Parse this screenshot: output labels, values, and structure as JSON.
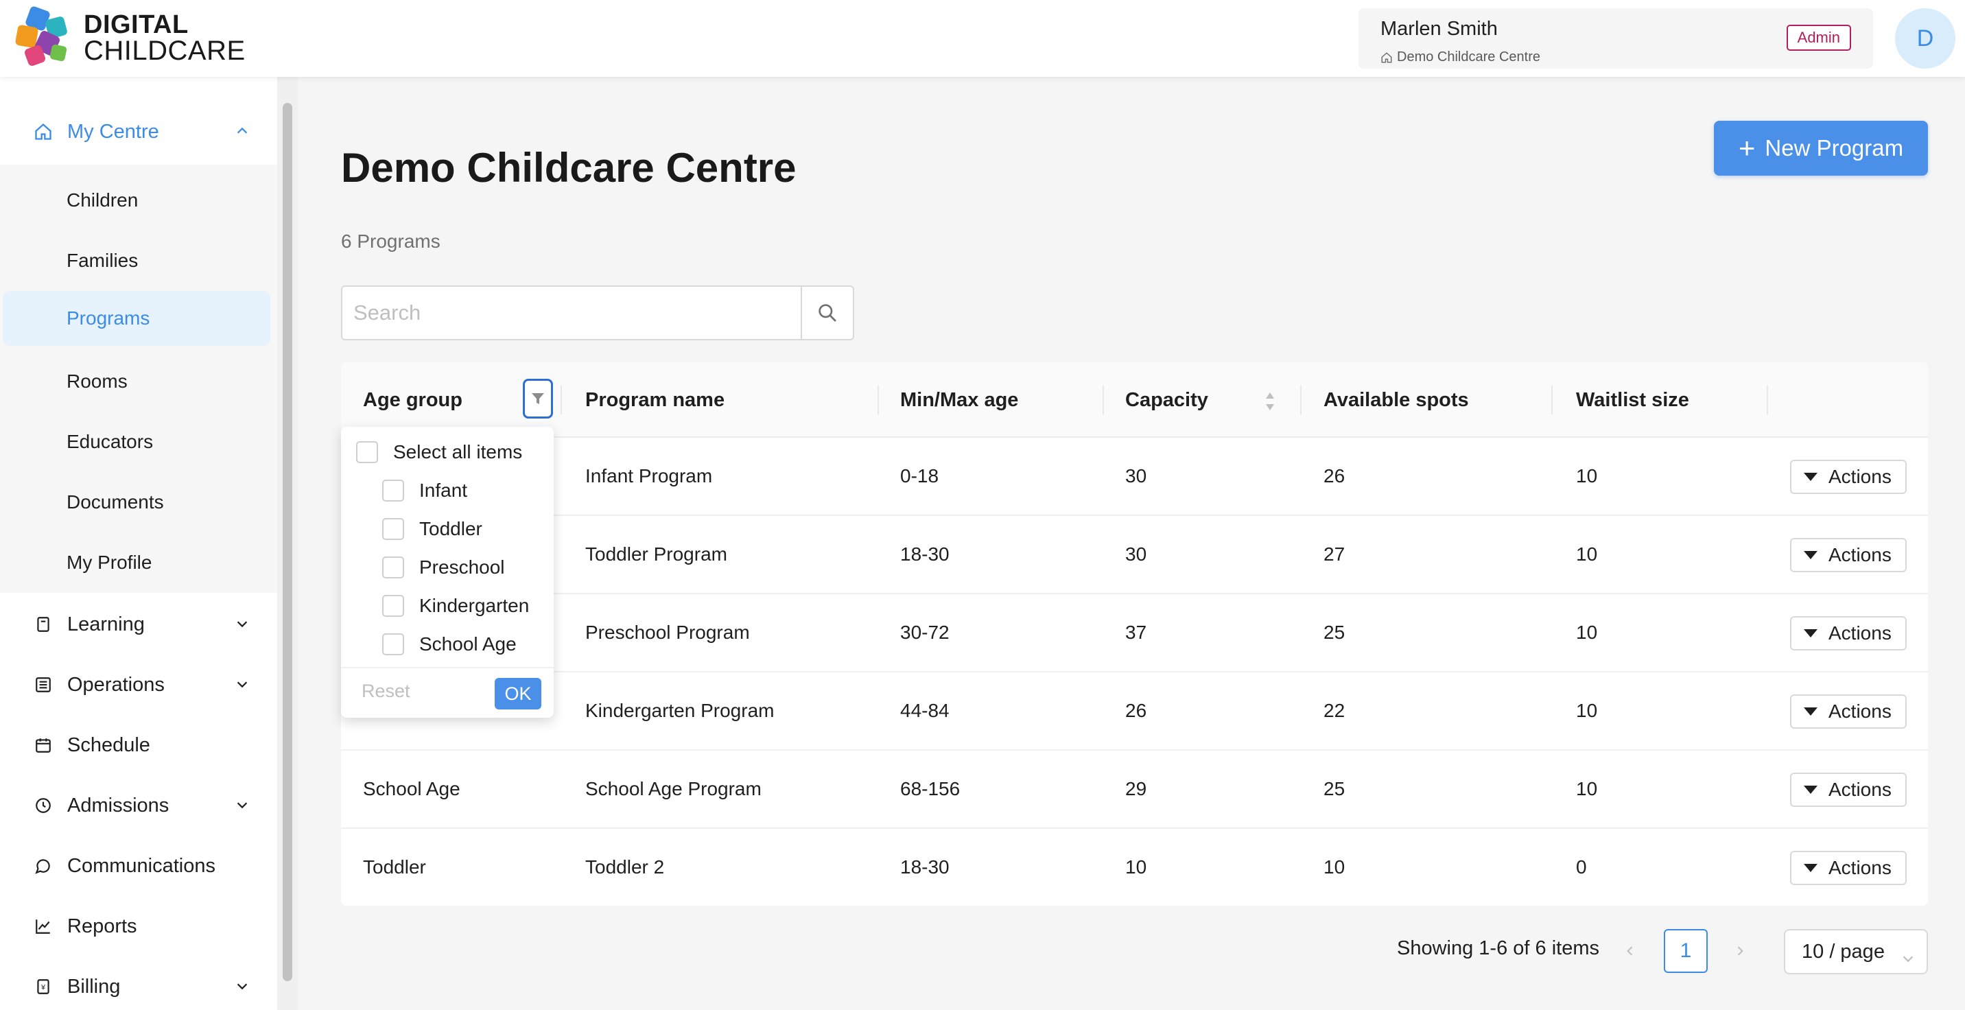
{
  "brand": {
    "line1": "DIGITAL",
    "line2": "CHILDCARE"
  },
  "user": {
    "name": "Marlen Smith",
    "centre": "Demo Childcare Centre",
    "role": "Admin",
    "avatar_initial": "D"
  },
  "sidebar": {
    "my_centre": "My Centre",
    "sub_items": [
      "Children",
      "Families",
      "Programs",
      "Rooms",
      "Educators",
      "Documents",
      "My Profile"
    ],
    "selected": "Programs",
    "groups": [
      {
        "label": "Learning",
        "icon": "book-icon",
        "expandable": true
      },
      {
        "label": "Operations",
        "icon": "list-icon",
        "expandable": true
      },
      {
        "label": "Schedule",
        "icon": "calendar-icon",
        "expandable": false
      },
      {
        "label": "Admissions",
        "icon": "clock-icon",
        "expandable": true
      },
      {
        "label": "Communications",
        "icon": "chat-icon",
        "expandable": false
      },
      {
        "label": "Reports",
        "icon": "chart-icon",
        "expandable": false
      },
      {
        "label": "Billing",
        "icon": "invoice-icon",
        "expandable": true
      }
    ]
  },
  "main": {
    "title": "Demo Childcare Centre",
    "program_count": "6 Programs",
    "new_button": "New Program",
    "search_placeholder": "Search"
  },
  "table": {
    "columns": [
      "Age group",
      "Program name",
      "Min/Max age",
      "Capacity",
      "Available spots",
      "Waitlist size"
    ],
    "rows": [
      {
        "age_group": "",
        "program": "Infant Program",
        "age": "0-18",
        "capacity": "30",
        "available": "26",
        "waitlist": "10"
      },
      {
        "age_group": "",
        "program": "Toddler Program",
        "age": "18-30",
        "capacity": "30",
        "available": "27",
        "waitlist": "10"
      },
      {
        "age_group": "",
        "program": "Preschool Program",
        "age": "30-72",
        "capacity": "37",
        "available": "25",
        "waitlist": "10"
      },
      {
        "age_group": "",
        "program": "Kindergarten Program",
        "age": "44-84",
        "capacity": "26",
        "available": "22",
        "waitlist": "10"
      },
      {
        "age_group": "School Age",
        "program": "School Age Program",
        "age": "68-156",
        "capacity": "29",
        "available": "25",
        "waitlist": "10"
      },
      {
        "age_group": "Toddler",
        "program": "Toddler 2",
        "age": "18-30",
        "capacity": "10",
        "available": "10",
        "waitlist": "0"
      }
    ],
    "action_label": "Actions"
  },
  "filter": {
    "select_all": "Select all items",
    "options": [
      "Infant",
      "Toddler",
      "Preschool",
      "Kindergarten",
      "School Age"
    ],
    "reset": "Reset",
    "ok": "OK"
  },
  "pagination": {
    "summary": "Showing 1-6 of 6 items",
    "current_page": "1",
    "page_size": "10 / page"
  },
  "colors": {
    "accent": "#3c8ce6",
    "primary_button": "#4a90e8",
    "admin_badge": "#b0205e",
    "filter_focus": "#2f6cd6"
  }
}
